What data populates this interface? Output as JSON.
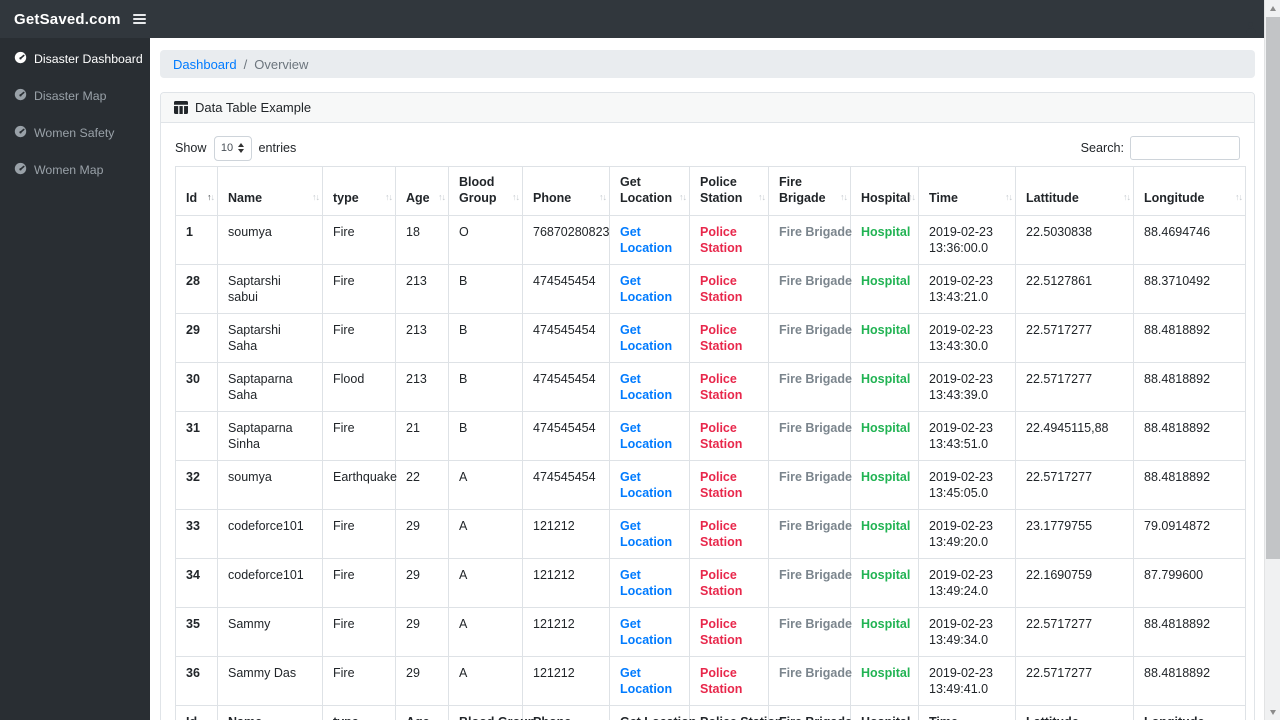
{
  "navbar": {
    "brand": "GetSaved.com"
  },
  "sidebar": {
    "items": [
      {
        "label": "Disaster Dashboard",
        "active": true
      },
      {
        "label": "Disaster Map",
        "active": false
      },
      {
        "label": "Women Safety",
        "active": false
      },
      {
        "label": "Women Map",
        "active": false
      }
    ]
  },
  "breadcrumb": {
    "link": "Dashboard",
    "separator": "/",
    "current": "Overview"
  },
  "card": {
    "title": "Data Table Example"
  },
  "controls": {
    "show_label": "Show",
    "entries_value": "10",
    "entries_label": "entries",
    "search_label": "Search:",
    "search_value": ""
  },
  "table": {
    "columns": [
      "Id",
      "Name",
      "type",
      "Age",
      "Blood Group",
      "Phone",
      "Get Location",
      "Police Station",
      "Fire Brigade",
      "Hospital",
      "Time",
      "Lattitude",
      "Longitude"
    ],
    "sorted_column": "Id",
    "sorted_direction": "asc",
    "row_links": {
      "get_location": "Get Location",
      "police_station": "Police Station",
      "fire_brigade": "Fire Brigade",
      "hospital": "Hospital"
    },
    "rows": [
      {
        "id": "1",
        "name": "soumya",
        "type": "Fire",
        "age": "18",
        "blood_group": "O",
        "phone": "76870280823",
        "time": "2019-02-23 13:36:00.0",
        "lattitude": "22.5030838",
        "longitude": "88.4694746"
      },
      {
        "id": "28",
        "name": "Saptarshi sabui",
        "type": "Fire",
        "age": "213",
        "blood_group": "B",
        "phone": "474545454",
        "time": "2019-02-23 13:43:21.0",
        "lattitude": "22.5127861",
        "longitude": "88.3710492"
      },
      {
        "id": "29",
        "name": "Saptarshi Saha",
        "type": "Fire",
        "age": "213",
        "blood_group": "B",
        "phone": "474545454",
        "time": "2019-02-23 13:43:30.0",
        "lattitude": "22.5717277",
        "longitude": "88.4818892"
      },
      {
        "id": "30",
        "name": "Saptaparna Saha",
        "type": "Flood",
        "age": "213",
        "blood_group": "B",
        "phone": "474545454",
        "time": "2019-02-23 13:43:39.0",
        "lattitude": "22.5717277",
        "longitude": "88.4818892"
      },
      {
        "id": "31",
        "name": "Saptaparna Sinha",
        "type": "Fire",
        "age": "21",
        "blood_group": "B",
        "phone": "474545454",
        "time": "2019-02-23 13:43:51.0",
        "lattitude": "22.4945115,88",
        "longitude": "88.4818892"
      },
      {
        "id": "32",
        "name": "soumya",
        "type": "Earthquake",
        "age": "22",
        "blood_group": "A",
        "phone": "474545454",
        "time": "2019-02-23 13:45:05.0",
        "lattitude": "22.5717277",
        "longitude": "88.4818892"
      },
      {
        "id": "33",
        "name": "codeforce101",
        "type": "Fire",
        "age": "29",
        "blood_group": "A",
        "phone": "121212",
        "time": "2019-02-23 13:49:20.0",
        "lattitude": "23.1779755",
        "longitude": "79.0914872"
      },
      {
        "id": "34",
        "name": "codeforce101",
        "type": "Fire",
        "age": "29",
        "blood_group": "A",
        "phone": "121212",
        "time": "2019-02-23 13:49:24.0",
        "lattitude": "22.1690759",
        "longitude": "87.799600"
      },
      {
        "id": "35",
        "name": "Sammy",
        "type": "Fire",
        "age": "29",
        "blood_group": "A",
        "phone": "121212",
        "time": "2019-02-23 13:49:34.0",
        "lattitude": "22.5717277",
        "longitude": "88.4818892"
      },
      {
        "id": "36",
        "name": "Sammy Das",
        "type": "Fire",
        "age": "29",
        "blood_group": "A",
        "phone": "121212",
        "time": "2019-02-23 13:49:41.0",
        "lattitude": "22.5717277",
        "longitude": "88.4818892"
      }
    ]
  },
  "colors": {
    "navbar_bg": "#31373d",
    "sidebar_bg": "#292e33",
    "link_blue": "#007bff",
    "police_red": "#e8274b",
    "fire_gray": "#7b858d",
    "hospital_green": "#21b353",
    "border": "#dee2e6"
  }
}
